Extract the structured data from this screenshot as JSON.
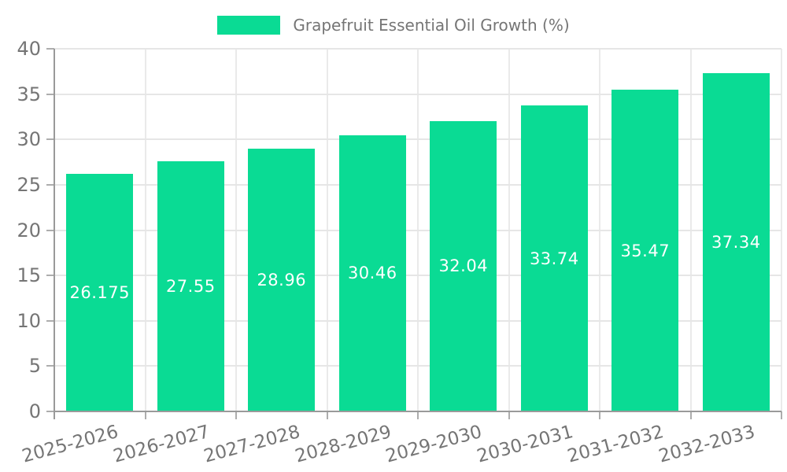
{
  "legend": {
    "label": "Grapefruit Essential Oil Growth (%)"
  },
  "colors": {
    "bar": "#0ADB94",
    "bar_label": "#FFFFFF",
    "axis": "#9A9A9A",
    "grid_h": "#E6E6E6",
    "grid_v": "#EAEAEA",
    "tick": "#ADADAD",
    "text": "#757575",
    "background": "#FFFFFF"
  },
  "chart_data": {
    "type": "bar",
    "title": "Grapefruit Essential Oil Growth (%)",
    "categories": [
      "2025-2026",
      "2026-2027",
      "2027-2028",
      "2028-2029",
      "2029-2030",
      "2030-2031",
      "2031-2032",
      "2032-2033"
    ],
    "values": [
      26.175,
      27.55,
      28.96,
      30.46,
      32.04,
      33.74,
      35.47,
      37.34
    ],
    "value_labels": [
      "26.175",
      "27.55",
      "28.96",
      "30.46",
      "32.04",
      "33.74",
      "35.47",
      "37.34"
    ],
    "series": [
      {
        "name": "Grapefruit Essential Oil Growth (%)",
        "values": [
          26.175,
          27.55,
          28.96,
          30.46,
          32.04,
          33.74,
          35.47,
          37.34
        ]
      }
    ],
    "xlabel": "",
    "ylabel": "",
    "ylim": [
      0,
      40
    ],
    "yticks": [
      0,
      5,
      10,
      15,
      20,
      25,
      30,
      35,
      40
    ],
    "grid": true,
    "legend_position": "top",
    "x_tick_rotation_deg": -15,
    "value_label_position": "center-of-bar"
  }
}
